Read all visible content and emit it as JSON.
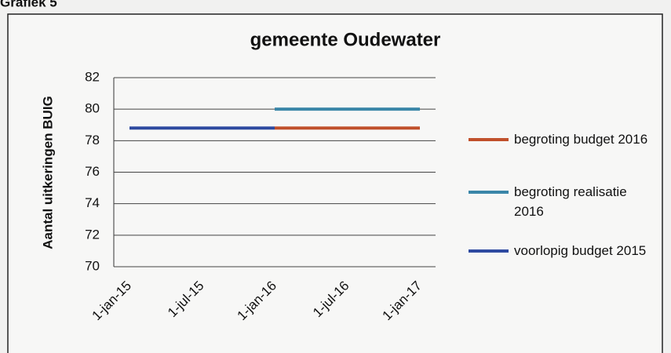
{
  "chart_data": {
    "type": "line",
    "heading": "Grafiek 5",
    "title": "gemeente Oudewater",
    "y_label": "Aantal uitkeringen BUIG",
    "categories": [
      "1-jan-15",
      "1-jul-15",
      "1-jan-16",
      "1-jul-16",
      "1-jan-17"
    ],
    "series": [
      {
        "name": "begroting budget 2016",
        "color": "#c0502b",
        "values": [
          null,
          null,
          78.8,
          78.8,
          78.8
        ]
      },
      {
        "name": "begroting realisatie 2016",
        "color": "#3a86a8",
        "values": [
          null,
          null,
          80,
          80,
          80
        ]
      },
      {
        "name": "voorlopig budget 2015",
        "color": "#2e4aa0",
        "values": [
          78.8,
          78.8,
          78.8,
          null,
          null
        ]
      }
    ],
    "ylim": [
      70,
      82
    ],
    "yticks": [
      70,
      72,
      74,
      76,
      78,
      80,
      82
    ],
    "grid": true,
    "legend": "right"
  }
}
